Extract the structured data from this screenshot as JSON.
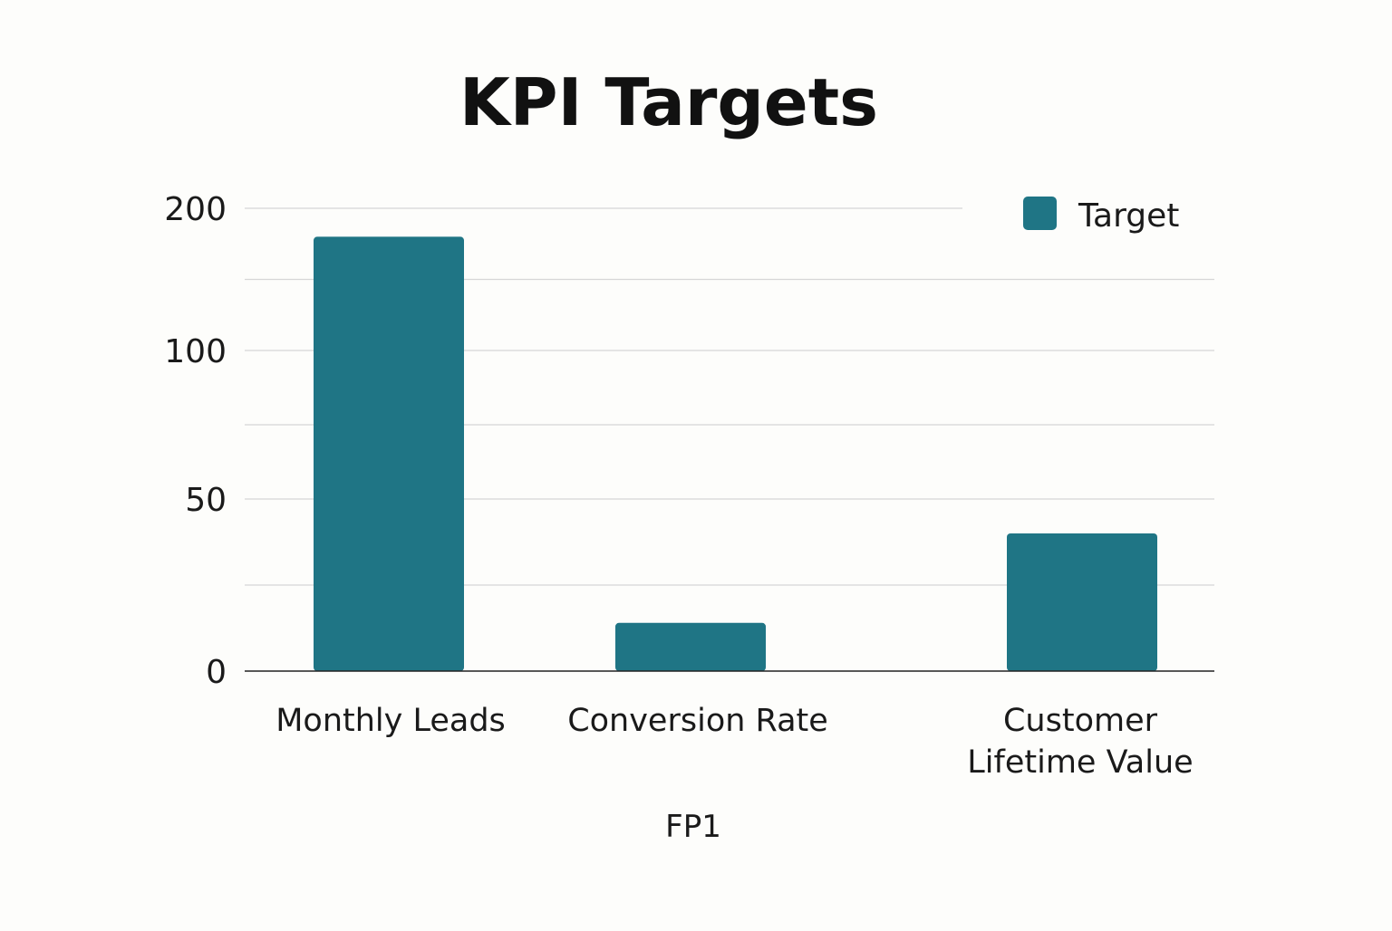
{
  "chart_data": {
    "type": "bar",
    "title": "KPI Targets",
    "xlabel": "FP1",
    "ylabel": "",
    "categories": [
      "Monthly Leads",
      "Conversion Rate",
      "Customer Lifetime Value"
    ],
    "category_lines": [
      [
        "Monthly Leads"
      ],
      [
        "Conversion Rate"
      ],
      [
        "Customer",
        "Lifetime Value"
      ]
    ],
    "series": [
      {
        "name": "Target",
        "values": [
          180,
          14,
          40
        ],
        "color": "#1f7585"
      }
    ],
    "y_ticks": [
      0,
      50,
      100,
      200
    ],
    "y_tick_labels": [
      "0",
      "50",
      "100",
      "200"
    ],
    "ylim": [
      0,
      200
    ],
    "y_scale": "non-linear (uneven tick spacing)",
    "grid": true,
    "legend": {
      "placement": "top-right",
      "entries": [
        "Target"
      ]
    }
  }
}
